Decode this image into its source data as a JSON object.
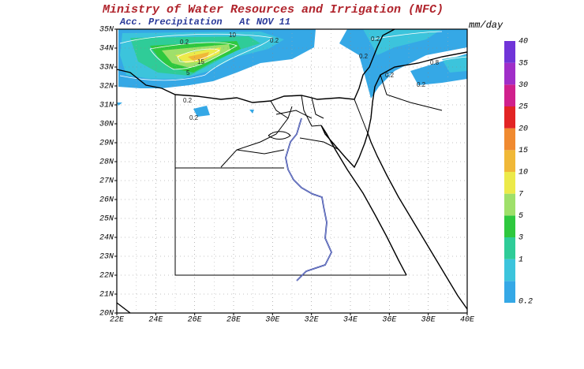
{
  "header": {
    "title": "Ministry of Water Resources and Irrigation (NFC)",
    "subtitle": "Acc. Precipitation   At NOV 11",
    "units": "mm/day"
  },
  "map": {
    "lat_labels": [
      "20N",
      "21N",
      "22N",
      "23N",
      "24N",
      "25N",
      "26N",
      "27N",
      "28N",
      "29N",
      "30N",
      "31N",
      "32N",
      "33N",
      "34N",
      "35N"
    ],
    "lon_labels": [
      "22E",
      "24E",
      "26E",
      "28E",
      "30E",
      "32E",
      "34E",
      "36E",
      "38E",
      "40E"
    ],
    "contour_labels": [
      "0.2",
      "10",
      "15",
      "5",
      "0.2",
      "0.2",
      "0.2",
      "0.2",
      "0.2",
      "0.8",
      "0.2",
      "0.2"
    ]
  },
  "legend": {
    "levels": [
      {
        "label": "0.2",
        "color": "#35a8e6"
      },
      {
        "label": "1",
        "color": "#3cc4dc"
      },
      {
        "label": "3",
        "color": "#2fcc98"
      },
      {
        "label": "5",
        "color": "#2ec83e"
      },
      {
        "label": "7",
        "color": "#9fe06a"
      },
      {
        "label": "10",
        "color": "#ecea4a"
      },
      {
        "label": "15",
        "color": "#f0b838"
      },
      {
        "label": "20",
        "color": "#f08a30"
      },
      {
        "label": "25",
        "color": "#e22424"
      },
      {
        "label": "30",
        "color": "#d0208c"
      },
      {
        "label": "35",
        "color": "#a02ec8"
      },
      {
        "label": "40",
        "color": "#7034d8"
      }
    ]
  }
}
